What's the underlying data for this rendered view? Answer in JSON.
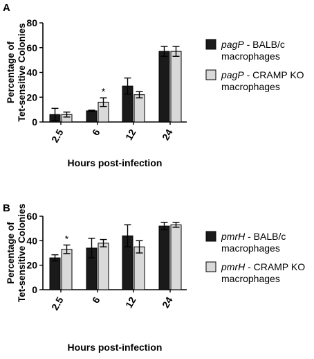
{
  "colors": {
    "balb": "#1a1a1a",
    "cramp": "#d9d9d9",
    "stroke": "#000000"
  },
  "chart_data": [
    {
      "type": "bar",
      "panel_label": "A",
      "categories": [
        "2.5",
        "6",
        "12",
        "24"
      ],
      "series": [
        {
          "name_italic": "pagP",
          "name_rest": " - BALB/c",
          "name_line2": "macrophages",
          "values": [
            6,
            9,
            29,
            57
          ],
          "errors": [
            5,
            0.5,
            6.5,
            4
          ]
        },
        {
          "name_italic": "pagP",
          "name_rest": " - CRAMP KO",
          "name_line2": "macrophages",
          "values": [
            6,
            16,
            22,
            57
          ],
          "errors": [
            2,
            3.5,
            2.5,
            4
          ]
        }
      ],
      "ylabel_line1": "Percentage of",
      "ylabel_line2": "Tet-sensitive Colonies",
      "xlabel": "Hours post-infection",
      "ylim": [
        0,
        80
      ],
      "yticks": [
        "0",
        "20",
        "40",
        "60",
        "80"
      ],
      "significance": [
        {
          "category": "6",
          "series": 1,
          "mark": "*"
        }
      ]
    },
    {
      "type": "bar",
      "panel_label": "B",
      "categories": [
        "2.5",
        "6",
        "12",
        "24"
      ],
      "series": [
        {
          "name_italic": "pmrH",
          "name_rest": " - BALB/c",
          "name_line2": "macrophages",
          "values": [
            26,
            34,
            44,
            52
          ],
          "errors": [
            2.5,
            8,
            9,
            3
          ]
        },
        {
          "name_italic": "pmrH",
          "name_rest": " - CRAMP KO",
          "name_line2": "macrophages",
          "values": [
            33,
            38,
            35,
            53
          ],
          "errors": [
            3.5,
            3,
            5,
            2
          ]
        }
      ],
      "ylabel_line1": "Percentage of",
      "ylabel_line2": "Tet-sensitive Colonies",
      "xlabel": "Hours post-infection",
      "ylim": [
        0,
        60
      ],
      "yticks": [
        "0",
        "20",
        "40",
        "60"
      ],
      "significance": [
        {
          "category": "2.5",
          "series": 1,
          "mark": "*"
        }
      ]
    }
  ]
}
